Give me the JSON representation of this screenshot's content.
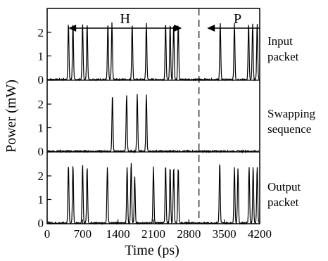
{
  "chart_data": {
    "type": "line",
    "xlabel": "Time (ps)",
    "ylabel": "Power (mW)",
    "xlim": [
      0,
      4200
    ],
    "x_ticks": [
      "0",
      "700",
      "1400",
      "2100",
      "2800",
      "3500",
      "4200"
    ],
    "y_ticks": [
      "0",
      "1",
      "2"
    ],
    "ylim": [
      0,
      2.8
    ],
    "grid": false,
    "legend": "none",
    "divider_x": 3000,
    "annotations": [
      {
        "text": "H",
        "x_start": 420,
        "x_end": 2660
      },
      {
        "text": "P",
        "x_start": 3160,
        "x_end": 4200
      }
    ],
    "series": [
      {
        "name": "Input packet",
        "label_lines": [
          "Input",
          "packet"
        ],
        "pulses": [
          {
            "x": 420,
            "y": 2.4
          },
          {
            "x": 510,
            "y": 2.4
          },
          {
            "x": 700,
            "y": 2.4
          },
          {
            "x": 790,
            "y": 2.4
          },
          {
            "x": 1200,
            "y": 2.4
          },
          {
            "x": 1280,
            "y": 2.4
          },
          {
            "x": 1680,
            "y": 2.4
          },
          {
            "x": 1960,
            "y": 2.4
          },
          {
            "x": 2340,
            "y": 2.4
          },
          {
            "x": 2430,
            "y": 2.4
          },
          {
            "x": 2500,
            "y": 2.4
          },
          {
            "x": 2590,
            "y": 2.4
          },
          {
            "x": 3420,
            "y": 2.4
          },
          {
            "x": 3700,
            "y": 2.4
          },
          {
            "x": 3980,
            "y": 2.4
          },
          {
            "x": 4060,
            "y": 2.4
          },
          {
            "x": 4150,
            "y": 2.4
          }
        ]
      },
      {
        "name": "Swapping sequence",
        "label_lines": [
          "Swapping",
          "sequence"
        ],
        "pulses": [
          {
            "x": 1290,
            "y": 2.4
          },
          {
            "x": 1570,
            "y": 2.4
          },
          {
            "x": 1780,
            "y": 2.4
          },
          {
            "x": 1960,
            "y": 2.4
          }
        ]
      },
      {
        "name": "Output packet",
        "label_lines": [
          "Output",
          "packet"
        ],
        "pulses": [
          {
            "x": 420,
            "y": 2.5
          },
          {
            "x": 510,
            "y": 2.5
          },
          {
            "x": 700,
            "y": 2.5
          },
          {
            "x": 790,
            "y": 2.4
          },
          {
            "x": 1190,
            "y": 2.4
          },
          {
            "x": 1580,
            "y": 2.4
          },
          {
            "x": 1660,
            "y": 2.6
          },
          {
            "x": 1730,
            "y": 2.0
          },
          {
            "x": 2100,
            "y": 2.4
          },
          {
            "x": 2340,
            "y": 2.5
          },
          {
            "x": 2430,
            "y": 2.4
          },
          {
            "x": 2500,
            "y": 2.4
          },
          {
            "x": 2590,
            "y": 2.4
          },
          {
            "x": 3410,
            "y": 2.6
          },
          {
            "x": 3700,
            "y": 2.4
          },
          {
            "x": 3770,
            "y": 2.3
          },
          {
            "x": 3990,
            "y": 2.4
          },
          {
            "x": 4070,
            "y": 2.4
          },
          {
            "x": 4150,
            "y": 2.4
          }
        ]
      }
    ]
  }
}
